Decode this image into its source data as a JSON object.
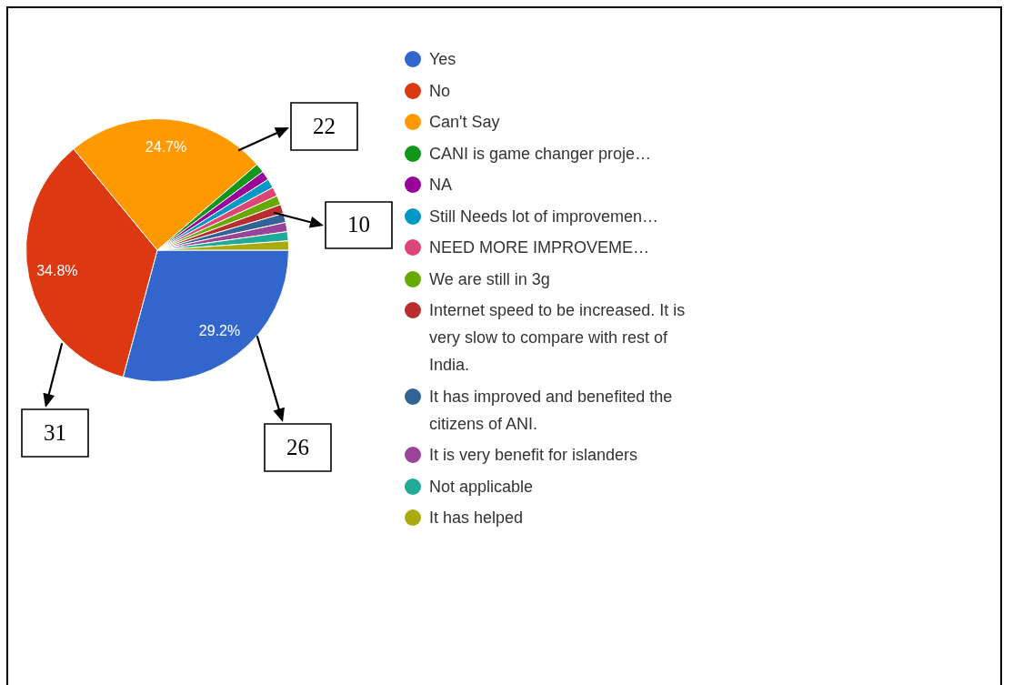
{
  "chart_data": {
    "type": "pie",
    "categories": [
      "Yes",
      "No",
      "Can't Say",
      "CANI is game changer proje…",
      "NA",
      "Still Needs lot of improvemen…",
      "NEED MORE IMPROVEME…",
      "We are still in 3g",
      "Internet speed to be increased. It is very slow to compare with rest of India.",
      "It has improved and benefited the citizens of ANI.",
      "It is very benefit for islanders",
      "Not applicable",
      "It has helped"
    ],
    "values": [
      29.2,
      34.8,
      24.7,
      1.13,
      1.13,
      1.13,
      1.13,
      1.13,
      1.13,
      1.13,
      1.13,
      1.13,
      1.13
    ],
    "colors": [
      "#3366cc",
      "#dc3912",
      "#ff9900",
      "#109618",
      "#990099",
      "#0099c6",
      "#dd4477",
      "#66aa00",
      "#b82e2e",
      "#316395",
      "#994499",
      "#22aa99",
      "#aaaa11"
    ],
    "value_labels": [
      "29.2%",
      "34.8%",
      "24.7%",
      null,
      null,
      null,
      null,
      null,
      null,
      null,
      null,
      null,
      null
    ],
    "annotations": [
      "22",
      "10",
      "31",
      "26"
    ],
    "legend": "right"
  }
}
